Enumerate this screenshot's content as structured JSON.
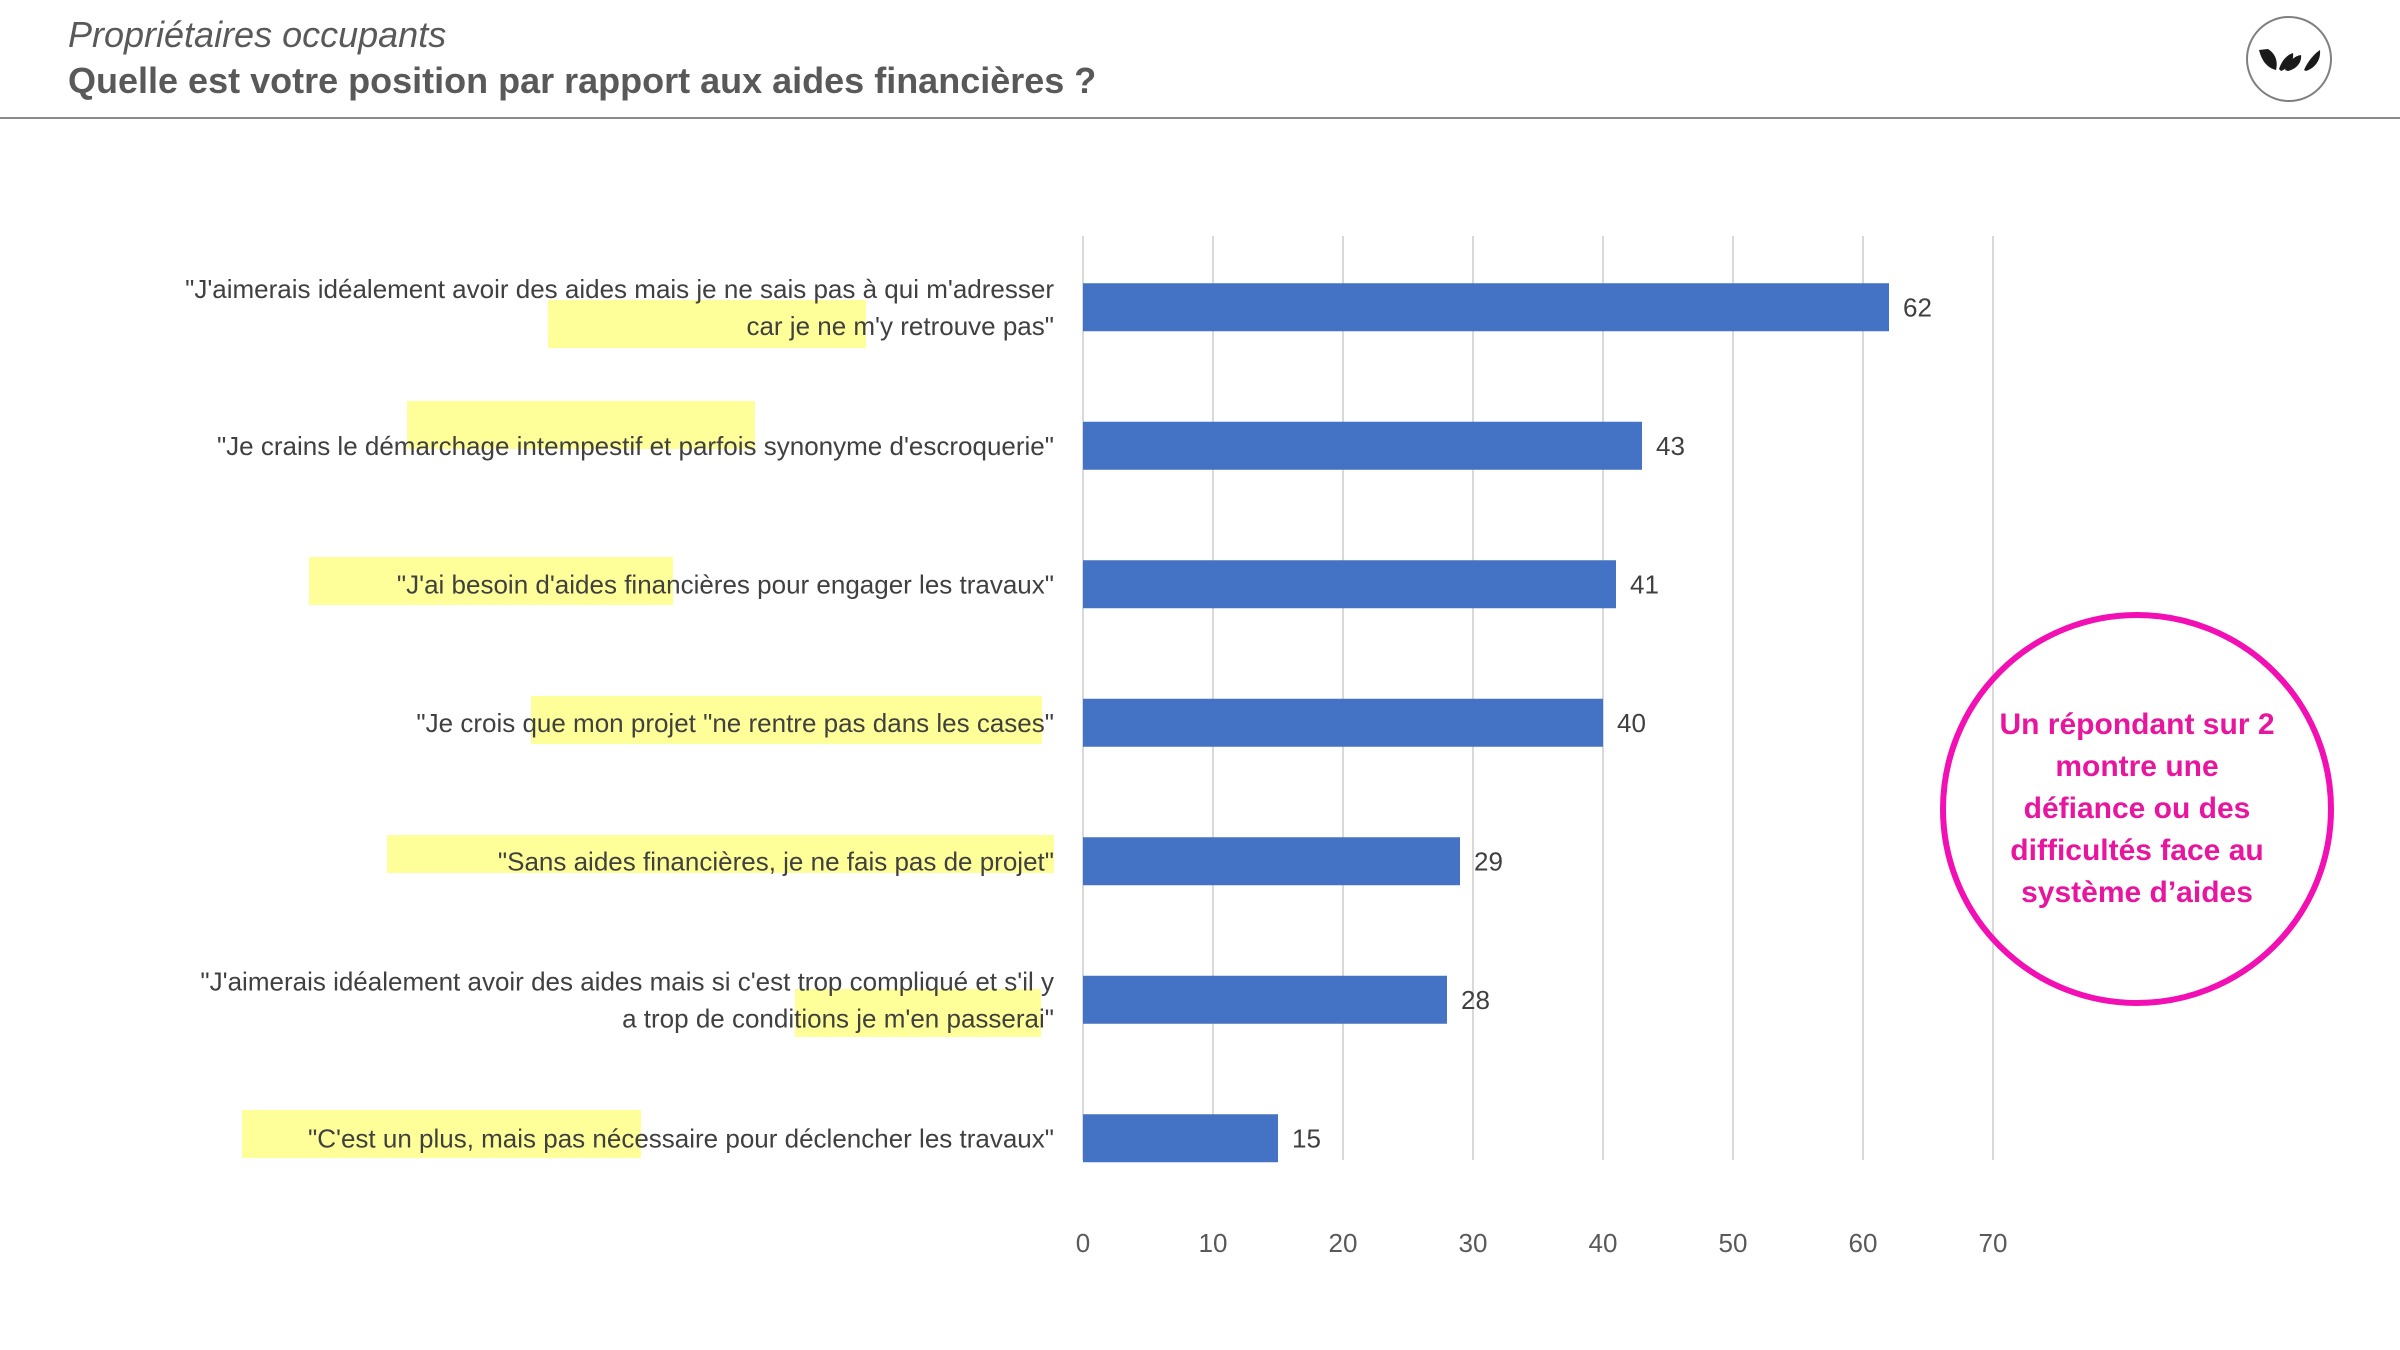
{
  "header": {
    "subtitle": "Propriétaires occupants",
    "title": "Quelle est votre position par rapport aux aides financières ?"
  },
  "callout": {
    "text": "Un répondant sur 2 montre une défiance ou des difficultés face au système d’aides",
    "color": "#e8159f"
  },
  "logo": {
    "icon": "leaves-logo-icon"
  },
  "colors": {
    "bar": "#4472c4",
    "highlight": "#ffff99",
    "callout": "#f20fb3"
  },
  "chart_data": {
    "type": "bar",
    "orientation": "horizontal",
    "categories": [
      [
        "\"J'aimerais idéalement avoir des aides mais je ne sais pas à qui m'adresser",
        "car je ne m'y retrouve pas\""
      ],
      [
        "\"Je crains le démarchage intempestif et parfois synonyme d'escroquerie\""
      ],
      [
        "\"J'ai besoin d'aides financières pour engager les travaux\""
      ],
      [
        "\"Je crois que mon projet \"ne rentre pas dans les cases\""
      ],
      [
        "\"Sans aides financières, je ne fais pas de projet\""
      ],
      [
        "\"J'aimerais idéalement avoir des aides mais si c'est trop compliqué et s'il y",
        "a trop de conditions je m'en passerai\""
      ],
      [
        "\"C'est un plus, mais pas nécessaire pour déclencher les travaux\""
      ]
    ],
    "values": [
      62,
      43,
      41,
      40,
      29,
      28,
      15
    ],
    "xlim": [
      0,
      70
    ],
    "xticks": [
      0,
      10,
      20,
      30,
      40,
      50,
      60,
      70
    ],
    "grid": "vertical",
    "title": "",
    "xlabel": "",
    "ylabel": ""
  }
}
